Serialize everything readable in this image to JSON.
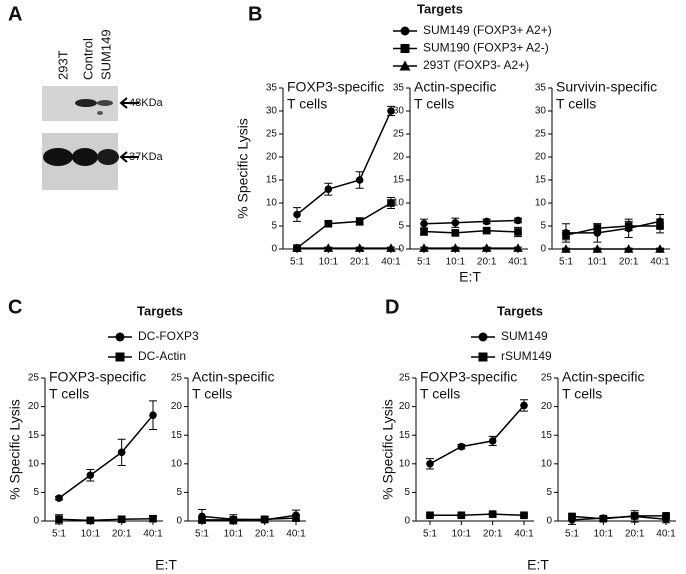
{
  "blot": {
    "panel": "A",
    "lanes": [
      "293T",
      "Control",
      "SUM149"
    ],
    "markers": [
      "48KDa",
      "37KDa"
    ]
  },
  "chart_data": [
    {
      "type": "line",
      "panel": "B",
      "legend_title": "Targets",
      "x_label": "E:T",
      "y_label": "% Specific Lysis",
      "categories": [
        "5:1",
        "10:1",
        "20:1",
        "40:1"
      ],
      "ylim": [
        0,
        35
      ],
      "yticks": [
        0,
        5,
        10,
        15,
        20,
        25,
        30,
        35
      ],
      "color": "#000000",
      "series": [
        {
          "name": "SUM149 (FOXP3+ A2+)",
          "marker": "circle"
        },
        {
          "name": "SUM190 (FOXP3+ A2-)",
          "marker": "square"
        },
        {
          "name": "293T (FOXP3- A2+)",
          "marker": "triangle"
        }
      ],
      "subplots": [
        {
          "title": [
            "FOXP3-specific",
            "T cells"
          ],
          "data": [
            {
              "values": [
                7.5,
                13,
                15,
                30
              ],
              "errors": [
                1.5,
                1.3,
                1.8,
                1
              ]
            },
            {
              "values": [
                0.2,
                5.5,
                6,
                10
              ],
              "errors": [
                0.3,
                0.5,
                0.8,
                1.2
              ]
            },
            {
              "values": [
                0.2,
                0.2,
                0.2,
                0.2
              ],
              "errors": [
                0.2,
                0.2,
                0.2,
                0.2
              ]
            }
          ]
        },
        {
          "title": [
            "Actin-specific",
            "T cells"
          ],
          "data": [
            {
              "values": [
                5.5,
                5.7,
                6,
                6.2
              ],
              "errors": [
                1,
                1,
                0.5,
                0.5
              ]
            },
            {
              "values": [
                3.8,
                3.5,
                4,
                3.7
              ],
              "errors": [
                0.8,
                0.6,
                0.5,
                1
              ]
            },
            {
              "values": [
                0.2,
                0.2,
                0.2,
                0.2
              ],
              "errors": [
                0.2,
                0.2,
                0.2,
                0.2
              ]
            }
          ]
        },
        {
          "title": [
            "Survivin-specific",
            "T cells"
          ],
          "data": [
            {
              "values": [
                3.5,
                3.5,
                4.5,
                6
              ],
              "errors": [
                2,
                2,
                2,
                1.5
              ]
            },
            {
              "values": [
                3,
                4.5,
                5,
                5
              ],
              "errors": [
                1,
                1,
                1,
                1.5
              ]
            },
            {
              "values": [
                0,
                0,
                0,
                0
              ],
              "errors": [
                0.2,
                0.2,
                0.2,
                0.2
              ]
            }
          ]
        }
      ]
    },
    {
      "type": "line",
      "panel": "C",
      "legend_title": "Targets",
      "x_label": "E:T",
      "y_label": "% Specific Lysis",
      "categories": [
        "5:1",
        "10:1",
        "20:1",
        "40:1"
      ],
      "ylim": [
        0,
        25
      ],
      "yticks": [
        0,
        5,
        10,
        15,
        20,
        25
      ],
      "color": "#000000",
      "series": [
        {
          "name": "DC-FOXP3",
          "marker": "circle"
        },
        {
          "name": "DC-Actin",
          "marker": "square"
        }
      ],
      "subplots": [
        {
          "title": [
            "FOXP3-specific",
            "T cells"
          ],
          "data": [
            {
              "values": [
                4,
                8,
                12,
                18.5
              ],
              "errors": [
                0.3,
                1,
                2.3,
                2.5
              ]
            },
            {
              "values": [
                0.3,
                0.1,
                0.3,
                0.4
              ],
              "errors": [
                0.8,
                0.3,
                0.5,
                0.4
              ]
            }
          ]
        },
        {
          "title": [
            "Actin-specific",
            "T cells"
          ],
          "data": [
            {
              "values": [
                0.8,
                0.3,
                0.2,
                1
              ],
              "errors": [
                1.2,
                0.8,
                0.5,
                0.9
              ]
            },
            {
              "values": [
                0.2,
                0.2,
                0.3,
                0.5
              ],
              "errors": [
                0.5,
                0.3,
                0.4,
                0.5
              ]
            }
          ]
        }
      ]
    },
    {
      "type": "line",
      "panel": "D",
      "legend_title": "Targets",
      "x_label": "E:T",
      "y_label": "% Specific Lysis",
      "categories": [
        "5:1",
        "10:1",
        "20:1",
        "40:1"
      ],
      "ylim": [
        0,
        25
      ],
      "yticks": [
        0,
        5,
        10,
        15,
        20,
        25
      ],
      "color": "#000000",
      "series": [
        {
          "name": "SUM149",
          "marker": "circle"
        },
        {
          "name": "rSUM149",
          "marker": "square"
        }
      ],
      "subplots": [
        {
          "title": [
            "FOXP3-specific",
            "T cells"
          ],
          "data": [
            {
              "values": [
                10,
                13,
                14,
                20.2
              ],
              "errors": [
                0.9,
                0.4,
                0.8,
                1
              ]
            },
            {
              "values": [
                1,
                1,
                1.2,
                1
              ],
              "errors": [
                0.2,
                0.2,
                0.2,
                0.2
              ]
            }
          ]
        },
        {
          "title": [
            "Actin-specific",
            "T cells"
          ],
          "data": [
            {
              "values": [
                0.2,
                0.5,
                0.8,
                0.3
              ],
              "errors": [
                0.8,
                0.3,
                1,
                0.6
              ]
            },
            {
              "values": [
                0.8,
                0.4,
                0.9,
                0.9
              ],
              "errors": [
                0.3,
                0.3,
                0.3,
                0.3
              ]
            }
          ]
        }
      ]
    }
  ]
}
